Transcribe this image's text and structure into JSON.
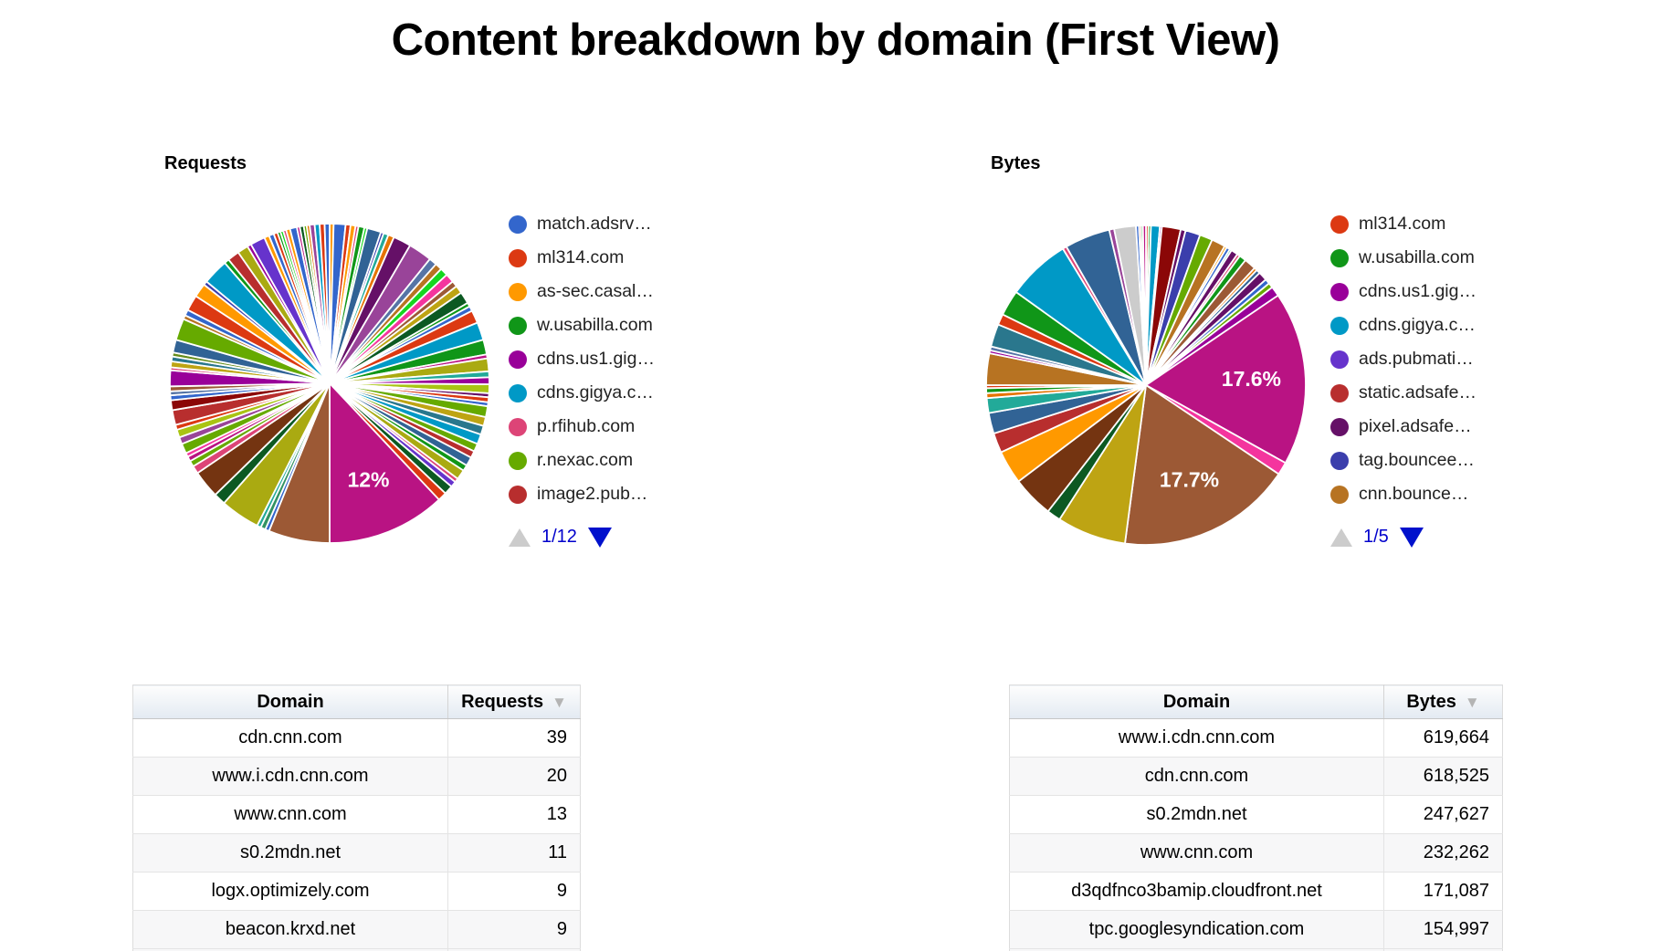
{
  "page": {
    "title": "Content breakdown by domain (First View)"
  },
  "chart_data": [
    {
      "type": "pie",
      "name": "requests",
      "heading": "Requests",
      "legend_position": "right",
      "legend_page": "1/12",
      "legend": [
        {
          "label": "match.adsrv…",
          "color": "#3366CC"
        },
        {
          "label": "ml314.com",
          "color": "#DC3912"
        },
        {
          "label": "as-sec.casal…",
          "color": "#FF9900"
        },
        {
          "label": "w.usabilla.com",
          "color": "#109618"
        },
        {
          "label": "cdns.us1.gig…",
          "color": "#990099"
        },
        {
          "label": "cdns.gigya.c…",
          "color": "#0099C6"
        },
        {
          "label": "p.rfihub.com",
          "color": "#DD4477"
        },
        {
          "label": "r.nexac.com",
          "color": "#66AA00"
        },
        {
          "label": "image2.pub…",
          "color": "#B82E2E"
        }
      ],
      "slices": [
        [
          "#FF9900",
          0.4
        ],
        [
          "#3366CC",
          1.2
        ],
        [
          "#DC3912",
          0.5
        ],
        [
          "#FF9900",
          0.5
        ],
        [
          "#DD4477",
          0.3
        ],
        [
          "#109618",
          0.6
        ],
        [
          "#16D620",
          0.3
        ],
        [
          "#316395",
          1.4
        ],
        [
          "#3B3EAC",
          0.3
        ],
        [
          "#22AA99",
          0.5
        ],
        [
          "#E67300",
          0.6
        ],
        [
          "#651067",
          1.8
        ],
        [
          "#994499",
          2.4
        ],
        [
          "#5574A6",
          0.8
        ],
        [
          "#B77322",
          0.7
        ],
        [
          "#16D620",
          0.8
        ],
        [
          "#F4359E",
          0.9
        ],
        [
          "#9C5935",
          0.6
        ],
        [
          "#BEA413",
          0.8
        ],
        [
          "#0C5922",
          1.2
        ],
        [
          "#109618",
          0.4
        ],
        [
          "#3366CC",
          0.5
        ],
        [
          "#DC3912",
          1.3
        ],
        [
          "#0099C6",
          1.8
        ],
        [
          "#109618",
          1.5
        ],
        [
          "#B91383",
          0.4
        ],
        [
          "#AAAA11",
          1.3
        ],
        [
          "#22AA99",
          0.6
        ],
        [
          "#990099",
          0.7
        ],
        [
          "#A9C413",
          0.9
        ],
        [
          "#651067",
          0.4
        ],
        [
          "#DC3912",
          0.5
        ],
        [
          "#3366CC",
          0.4
        ],
        [
          "#66AA00",
          1.1
        ],
        [
          "#BEA413",
          0.9
        ],
        [
          "#2A778D",
          0.9
        ],
        [
          "#0099C6",
          1.0
        ],
        [
          "#66AA00",
          0.8
        ],
        [
          "#B82E2E",
          0.7
        ],
        [
          "#316395",
          0.9
        ],
        [
          "#109618",
          0.6
        ],
        [
          "#AAAA11",
          1.0
        ],
        [
          "#DD4477",
          0.4
        ],
        [
          "#6633CC",
          0.6
        ],
        [
          "#0C5922",
          0.9
        ],
        [
          "#DC3912",
          0.9
        ],
        [
          "#B91383",
          12,
          "12%"
        ],
        [
          "#9C5935",
          6.2
        ],
        [
          "#3366CC",
          0.4
        ],
        [
          "#329262",
          0.5
        ],
        [
          "#22AA99",
          0.4
        ],
        [
          "#AAAA11",
          4.0
        ],
        [
          "#0C5922",
          1.2
        ],
        [
          "#743411",
          2.8
        ],
        [
          "#DD4477",
          0.8
        ],
        [
          "#66AA00",
          0.6
        ],
        [
          "#B91383",
          0.5
        ],
        [
          "#F4359E",
          0.4
        ],
        [
          "#66AA00",
          1.0
        ],
        [
          "#994499",
          0.7
        ],
        [
          "#A9C413",
          0.8
        ],
        [
          "#DC3912",
          0.5
        ],
        [
          "#B82E2E",
          1.5
        ],
        [
          "#8B0707",
          1.0
        ],
        [
          "#3366CC",
          0.5
        ],
        [
          "#5574A6",
          0.4
        ],
        [
          "#9C5935",
          0.5
        ],
        [
          "#990099",
          1.6
        ],
        [
          "#DD4477",
          0.3
        ],
        [
          "#BEA413",
          0.6
        ],
        [
          "#2A778D",
          0.5
        ],
        [
          "#668D1C",
          0.4
        ],
        [
          "#316395",
          1.3
        ],
        [
          "#66AA00",
          2.2
        ],
        [
          "#B77322",
          0.4
        ],
        [
          "#3366CC",
          0.6
        ],
        [
          "#DC3912",
          1.6
        ],
        [
          "#FF9900",
          1.4
        ],
        [
          "#3B3EAC",
          0.4
        ],
        [
          "#0099C6",
          2.6
        ],
        [
          "#109618",
          0.5
        ],
        [
          "#B82E2E",
          1.2
        ],
        [
          "#AAAA11",
          1.1
        ],
        [
          "#990099",
          0.4
        ],
        [
          "#6633CC",
          1.5
        ],
        [
          "#FF9900",
          0.5
        ],
        [
          "#3366CC",
          0.5
        ],
        [
          "#DC3912",
          0.4
        ],
        [
          "#109618",
          0.3
        ],
        [
          "#16D620",
          0.3
        ],
        [
          "#DD4477",
          0.3
        ],
        [
          "#FF9900",
          0.4
        ],
        [
          "#3366CC",
          0.7
        ],
        [
          "#B91383",
          0.3
        ],
        [
          "#0C5922",
          0.4
        ],
        [
          "#66AA00",
          0.3
        ],
        [
          "#E67300",
          0.3
        ],
        [
          "#994499",
          0.5
        ],
        [
          "#0099C6",
          0.5
        ],
        [
          "#DC3912",
          0.5
        ],
        [
          "#3366CC",
          0.5
        ]
      ]
    },
    {
      "type": "pie",
      "name": "bytes",
      "heading": "Bytes",
      "legend_position": "right",
      "legend_page": "1/5",
      "legend": [
        {
          "label": "ml314.com",
          "color": "#DC3912"
        },
        {
          "label": "w.usabilla.com",
          "color": "#109618"
        },
        {
          "label": "cdns.us1.gig…",
          "color": "#990099"
        },
        {
          "label": "cdns.gigya.c…",
          "color": "#0099C6"
        },
        {
          "label": "ads.pubmati…",
          "color": "#6633CC"
        },
        {
          "label": "static.adsafe…",
          "color": "#B82E2E"
        },
        {
          "label": "pixel.adsafe…",
          "color": "#651067"
        },
        {
          "label": "tag.bouncee…",
          "color": "#3B3EAC"
        },
        {
          "label": "cnn.bounce…",
          "color": "#B77322"
        }
      ],
      "slices": [
        [
          "#DC3912",
          0.25
        ],
        [
          "#109618",
          0.25
        ],
        [
          "#0099C6",
          0.9
        ],
        [
          "#990099",
          0.2
        ],
        [
          "#8B0707",
          1.9
        ],
        [
          "#651067",
          0.5
        ],
        [
          "#3B3EAC",
          1.5
        ],
        [
          "#66AA00",
          1.3
        ],
        [
          "#B77322",
          1.4
        ],
        [
          "#FF9900",
          0.25
        ],
        [
          "#3366CC",
          0.35
        ],
        [
          "#22AA99",
          0.2
        ],
        [
          "#651067",
          0.7
        ],
        [
          "#DD4477",
          0.3
        ],
        [
          "#109618",
          0.7
        ],
        [
          "#9C5935",
          1.2
        ],
        [
          "#E67300",
          0.3
        ],
        [
          "#316395",
          0.4
        ],
        [
          "#651067",
          0.9
        ],
        [
          "#3366CC",
          0.5
        ],
        [
          "#66AA00",
          0.5
        ],
        [
          "#990099",
          1.0
        ],
        [
          "#B91383",
          17.6,
          "17.6%"
        ],
        [
          "#F4359E",
          1.3
        ],
        [
          "#9C5935",
          17.7,
          "17.7%"
        ],
        [
          "#BEA413",
          7.0
        ],
        [
          "#0C5922",
          1.4
        ],
        [
          "#743411",
          4.2
        ],
        [
          "#FF9900",
          3.4
        ],
        [
          "#B82E2E",
          2.0
        ],
        [
          "#316395",
          2.1
        ],
        [
          "#22AA99",
          1.5
        ],
        [
          "#E67300",
          0.5
        ],
        [
          "#109618",
          0.5
        ],
        [
          "#DC3912",
          0.3
        ],
        [
          "#B77322",
          3.2
        ],
        [
          "#990099",
          0.3
        ],
        [
          "#5574A6",
          0.4
        ],
        [
          "#2A778D",
          2.3
        ],
        [
          "#DC3912",
          1.1
        ],
        [
          "#109618",
          2.6
        ],
        [
          "#0099C6",
          6.4
        ],
        [
          "#DD4477",
          0.4
        ],
        [
          "#316395",
          4.6
        ],
        [
          "#994499",
          0.5
        ],
        [
          "#CCCCCC",
          2.2
        ],
        [
          "#3366CC",
          0.3
        ],
        [
          "#DC3912",
          0.2
        ],
        [
          "#109618",
          0.2
        ],
        [
          "#B91383",
          0.3
        ]
      ]
    }
  ],
  "tables": [
    {
      "name": "requests",
      "headers": [
        "Domain",
        "Requests"
      ],
      "sort_arrow": "▼",
      "rows": [
        [
          "cdn.cnn.com",
          "39"
        ],
        [
          "www.i.cdn.cnn.com",
          "20"
        ],
        [
          "www.cnn.com",
          "13"
        ],
        [
          "s0.2mdn.net",
          "11"
        ],
        [
          "logx.optimizely.com",
          "9"
        ],
        [
          "beacon.krxd.net",
          "9"
        ]
      ]
    },
    {
      "name": "bytes",
      "headers": [
        "Domain",
        "Bytes"
      ],
      "sort_arrow": "▼",
      "rows": [
        [
          "www.i.cdn.cnn.com",
          "619,664"
        ],
        [
          "cdn.cnn.com",
          "618,525"
        ],
        [
          "s0.2mdn.net",
          "247,627"
        ],
        [
          "www.cnn.com",
          "232,262"
        ],
        [
          "d3qdfnco3bamip.cloudfront.net",
          "171,087"
        ],
        [
          "tpc.googlesyndication.com",
          "154,997"
        ]
      ]
    }
  ]
}
